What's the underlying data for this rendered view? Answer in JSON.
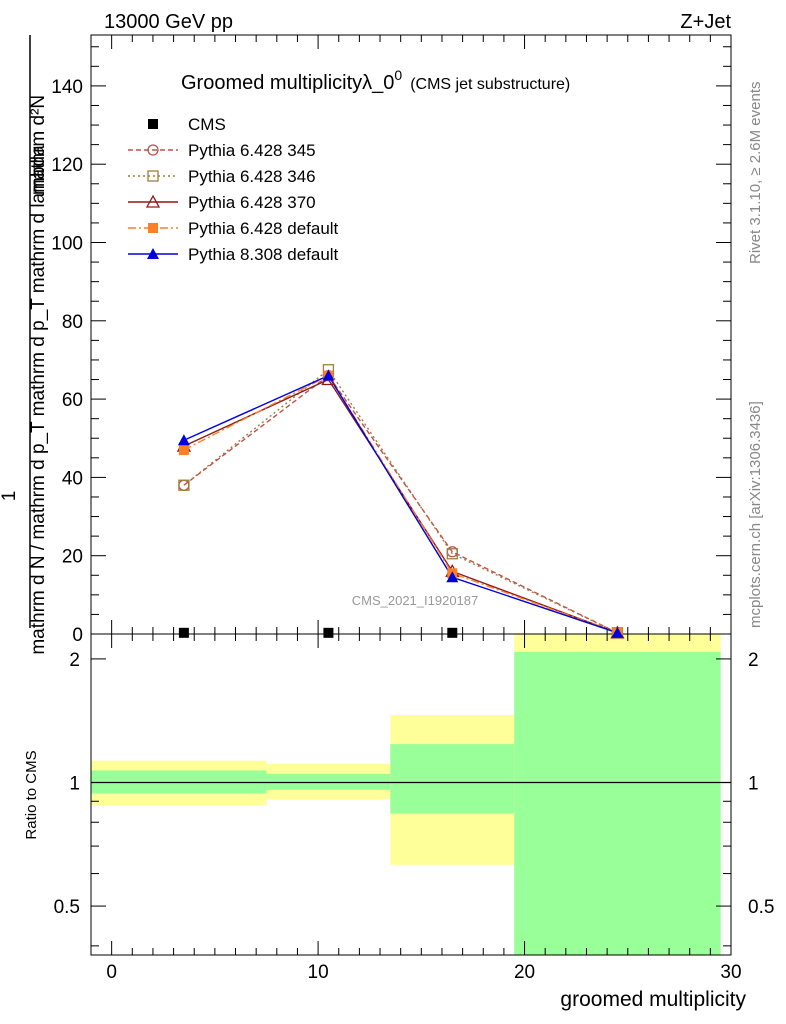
{
  "header": {
    "left": "13000 GeV pp",
    "right": "Z+Jet"
  },
  "side": {
    "rivet": "Rivet 3.1.10, ≥ 2.6M events",
    "mcplots": "mcplots.cern.ch [arXiv:1306.3436]"
  },
  "chart_data": {
    "type": "line",
    "title": "Groomed multiplicityλ_0",
    "title_sup": "0",
    "title_note": "(CMS jet substructure)",
    "watermark": "CMS_2021_I1920187",
    "xlabel": "groomed multiplicity",
    "ylabel_main_top": "mathrm d²N",
    "ylabel_main_bottom": "mathrm d N / mathrm d p_T mathrm d p_T mathrm d lambda",
    "ylabel_main_one": "1",
    "ylabel_ratio": "Ratio to CMS",
    "xlim": [
      -1,
      30
    ],
    "ylim_main": [
      0,
      153
    ],
    "ylim_ratio": [
      0.38,
      2.3
    ],
    "x_ticks": [
      "0",
      "10",
      "20",
      "30"
    ],
    "y_ticks_main": [
      "0",
      "20",
      "40",
      "60",
      "80",
      "100",
      "120",
      "140"
    ],
    "y_ticks_ratio": [
      "0.5",
      "1",
      "2"
    ],
    "bins": [
      [
        -1,
        7.5
      ],
      [
        7.5,
        13.5
      ],
      [
        13.5,
        19.5
      ],
      [
        19.5,
        29.5
      ]
    ],
    "legend_position": "top-left",
    "series": [
      {
        "name": "CMS",
        "color": "#000000",
        "marker": "square-filled",
        "dash": "none",
        "x": [
          3.5,
          10.5,
          16.5,
          24.5
        ],
        "values": [
          0.3,
          0.3,
          0.3,
          0.3
        ]
      },
      {
        "name": "Pythia 6.428 345",
        "color": "#c0504d",
        "marker": "circle-open",
        "dash": "5,3",
        "x": [
          3.5,
          10.5,
          16.5,
          24.5
        ],
        "values": [
          38,
          66,
          21,
          0.3
        ]
      },
      {
        "name": "Pythia 6.428 346",
        "color": "#9c7f3c",
        "marker": "square-open",
        "dash": "2,3",
        "x": [
          3.5,
          10.5,
          16.5,
          24.5
        ],
        "values": [
          38,
          67.5,
          20.5,
          0.3
        ]
      },
      {
        "name": "Pythia 6.428 370",
        "color": "#8b1a1a",
        "marker": "triangle-open",
        "dash": "none",
        "x": [
          3.5,
          10.5,
          16.5,
          24.5
        ],
        "values": [
          48,
          65,
          16,
          0.3
        ]
      },
      {
        "name": "Pythia 6.428 default",
        "color": "#ff7f27",
        "marker": "square-filled",
        "dash": "8,3,2,3",
        "x": [
          3.5,
          10.5,
          16.5,
          24.5
        ],
        "values": [
          47,
          66,
          15.5,
          0.3
        ]
      },
      {
        "name": "Pythia 8.308 default",
        "color": "#0000dd",
        "marker": "triangle-filled",
        "dash": "none",
        "x": [
          3.5,
          10.5,
          16.5,
          24.5
        ],
        "values": [
          49.5,
          66,
          14.5,
          0.3
        ]
      }
    ],
    "ratio_bands": [
      {
        "x0": -1,
        "x1": 7.5,
        "green": [
          0.94,
          1.07
        ],
        "yellow": [
          0.88,
          1.13
        ]
      },
      {
        "x0": 7.5,
        "x1": 13.5,
        "green": [
          0.96,
          1.05
        ],
        "yellow": [
          0.91,
          1.11
        ]
      },
      {
        "x0": 13.5,
        "x1": 19.5,
        "green": [
          0.84,
          1.24
        ],
        "yellow": [
          0.63,
          1.46
        ]
      },
      {
        "x0": 19.5,
        "x1": 29.5,
        "green": [
          0.38,
          2.08
        ],
        "yellow": [
          0.38,
          2.3
        ]
      }
    ],
    "colors": {
      "green_band": "#99ff99",
      "yellow_band": "#ffff99",
      "reference_line": "#000000"
    }
  }
}
